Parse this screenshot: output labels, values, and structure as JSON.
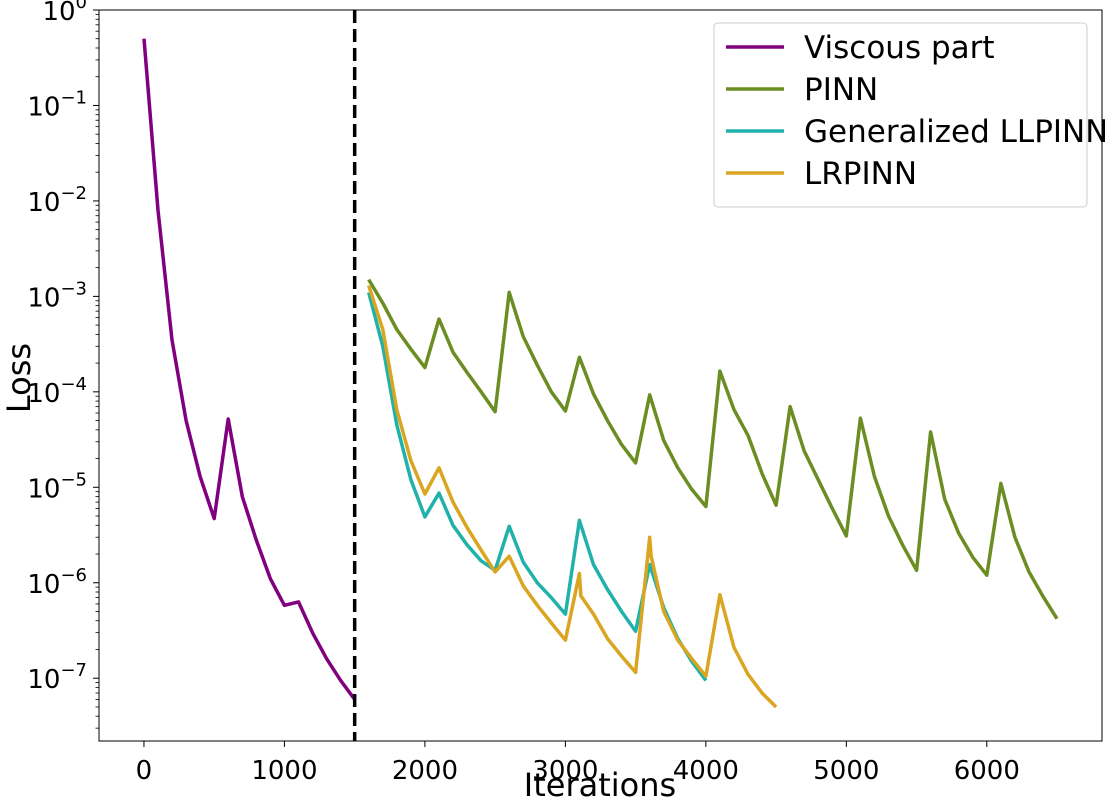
{
  "chart_data": {
    "type": "line",
    "title": "",
    "xlabel": "Iterations",
    "ylabel": "Loss",
    "yscale": "log",
    "xlim": [
      -320,
      6820
    ],
    "ylim": [
      2.2e-08,
      1.0
    ],
    "xticks": [
      0,
      1000,
      2000,
      3000,
      4000,
      5000,
      6000
    ],
    "xtick_labels": [
      "0",
      "1000",
      "2000",
      "3000",
      "4000",
      "5000",
      "6000"
    ],
    "yticks": [
      {
        "value": 1.0,
        "base": "10",
        "exp": "0"
      },
      {
        "value": 0.1,
        "base": "10",
        "exp": "−1"
      },
      {
        "value": 0.01,
        "base": "10",
        "exp": "−2"
      },
      {
        "value": 0.001,
        "base": "10",
        "exp": "−3"
      },
      {
        "value": 0.0001,
        "base": "10",
        "exp": "−4"
      },
      {
        "value": 1e-05,
        "base": "10",
        "exp": "−5"
      },
      {
        "value": 1e-06,
        "base": "10",
        "exp": "−6"
      },
      {
        "value": 1e-07,
        "base": "10",
        "exp": "−7"
      }
    ],
    "grid": false,
    "legend": "top-right",
    "vline": {
      "x": 1500,
      "style": "dashed",
      "color": "#000000"
    },
    "series": [
      {
        "name": "Viscous part",
        "color": "#800080",
        "x": [
          0,
          100,
          200,
          300,
          400,
          500,
          600,
          700,
          800,
          900,
          1000,
          1100,
          1200,
          1300,
          1400,
          1500
        ],
        "y": [
          0.5,
          0.008,
          0.00035,
          5e-05,
          1.3e-05,
          4.7e-06,
          5.2e-05,
          8e-06,
          2.8e-06,
          1.1e-06,
          5.8e-07,
          6.3e-07,
          3e-07,
          1.6e-07,
          9.5e-08,
          6e-08
        ]
      },
      {
        "name": "PINN",
        "color": "#6b8e23",
        "x": [
          1600,
          1700,
          1800,
          1900,
          2000,
          2100,
          2200,
          2300,
          2400,
          2500,
          2600,
          2700,
          2800,
          2900,
          3000,
          3100,
          3200,
          3300,
          3400,
          3500,
          3600,
          3700,
          3800,
          3900,
          4000,
          4100,
          4200,
          4300,
          4400,
          4500,
          4600,
          4700,
          4800,
          4900,
          5000,
          5100,
          5200,
          5300,
          5400,
          5500,
          5600,
          5700,
          5800,
          5900,
          6000,
          6100,
          6200,
          6300,
          6400,
          6500
        ],
        "y": [
          0.0015,
          0.00085,
          0.00045,
          0.00028,
          0.00018,
          0.00058,
          0.00026,
          0.00016,
          0.0001,
          6.2e-05,
          0.0011,
          0.00038,
          0.00019,
          0.0001,
          6.3e-05,
          0.00023,
          9.5e-05,
          5e-05,
          2.8e-05,
          1.8e-05,
          9.3e-05,
          3.1e-05,
          1.6e-05,
          9.5e-06,
          6.3e-06,
          0.000165,
          6.5e-05,
          3.5e-05,
          1.4e-05,
          6.5e-06,
          7e-05,
          2.4e-05,
          1.2e-05,
          6e-06,
          3.1e-06,
          5.3e-05,
          1.3e-05,
          5e-06,
          2.5e-06,
          1.35e-06,
          3.8e-05,
          7.5e-06,
          3.3e-06,
          1.85e-06,
          1.2e-06,
          1.1e-05,
          3e-06,
          1.3e-06,
          7.2e-07,
          4.2e-07
        ]
      },
      {
        "name": "Generalized LLPINN",
        "color": "#20b2aa",
        "x": [
          1600,
          1700,
          1800,
          1900,
          2000,
          2100,
          2200,
          2300,
          2400,
          2500,
          2600,
          2700,
          2800,
          2900,
          3000,
          3100,
          3200,
          3300,
          3400,
          3500,
          3600,
          3700,
          3800,
          3900,
          4000
        ],
        "y": [
          0.0011,
          0.0003,
          4.5e-05,
          1.2e-05,
          4.9e-06,
          8.7e-06,
          4e-06,
          2.5e-06,
          1.7e-06,
          1.35e-06,
          3.9e-06,
          1.65e-06,
          1e-06,
          7e-07,
          4.7e-07,
          4.5e-06,
          1.55e-06,
          8.5e-07,
          5e-07,
          3.1e-07,
          1.55e-06,
          5.5e-07,
          2.6e-07,
          1.5e-07,
          9.5e-08
        ]
      },
      {
        "name": "LRPINN",
        "color": "#daa520",
        "x": [
          1600,
          1700,
          1800,
          1900,
          2000,
          2100,
          2200,
          2300,
          2400,
          2500,
          2600,
          2700,
          2800,
          2900,
          3000,
          3100,
          3110,
          3200,
          3300,
          3400,
          3500,
          3600,
          3610,
          3700,
          3800,
          3900,
          4000,
          4100,
          4200,
          4300,
          4400,
          4500
        ],
        "y": [
          0.0013,
          0.00045,
          6.5e-05,
          1.9e-05,
          8.5e-06,
          1.6e-05,
          7e-06,
          3.8e-06,
          2.2e-06,
          1.3e-06,
          1.9e-06,
          9.3e-07,
          5.8e-07,
          3.8e-07,
          2.5e-07,
          1.25e-06,
          7.3e-07,
          4.7e-07,
          2.6e-07,
          1.7e-07,
          1.15e-07,
          3e-06,
          1.9e-06,
          5e-07,
          2.5e-07,
          1.6e-07,
          1.05e-07,
          7.5e-07,
          2.1e-07,
          1.1e-07,
          7e-08,
          5e-08
        ]
      }
    ]
  }
}
